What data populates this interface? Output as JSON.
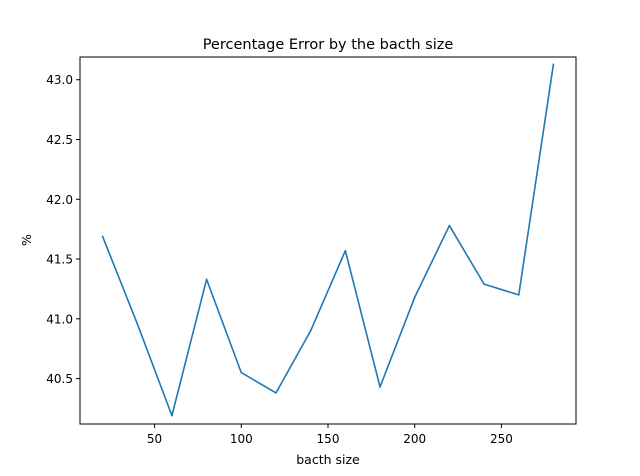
{
  "chart_data": {
    "type": "line",
    "title": "Percentage Error by the bacth size",
    "xlabel": "bacth size",
    "ylabel": "%",
    "xlim": [
      7,
      293
    ],
    "ylim": [
      40.12,
      43.19
    ],
    "x_ticks": [
      50,
      100,
      150,
      200,
      250
    ],
    "x_tick_labels": [
      "50",
      "100",
      "150",
      "200",
      "250"
    ],
    "y_ticks": [
      40.5,
      41.0,
      41.5,
      42.0,
      42.5,
      43.0
    ],
    "y_tick_labels": [
      "40.5",
      "41.0",
      "41.5",
      "42.0",
      "42.5",
      "43.0"
    ],
    "grid": false,
    "color": "#1f77b4",
    "x": [
      20,
      40,
      60,
      80,
      100,
      120,
      140,
      160,
      180,
      200,
      220,
      240,
      260,
      280
    ],
    "y": [
      41.69,
      40.96,
      40.19,
      41.33,
      40.55,
      40.38,
      40.9,
      41.57,
      40.43,
      41.18,
      41.78,
      41.29,
      41.2,
      43.13
    ]
  }
}
